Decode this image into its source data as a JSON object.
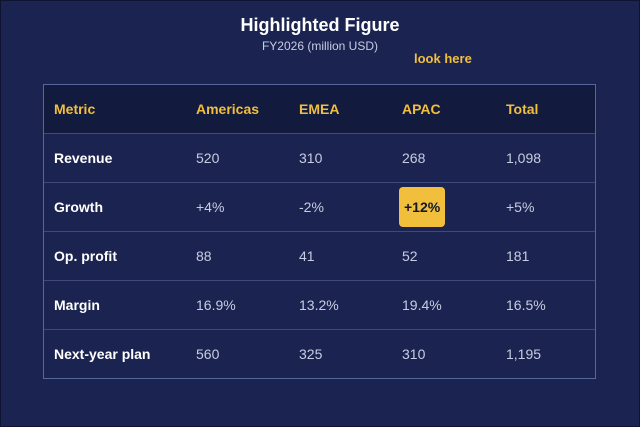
{
  "chart_data": {
    "type": "table",
    "title": "Highlighted Figure",
    "subtitle": "FY2026 (million USD)",
    "annotation": "look here",
    "columns": [
      "Metric",
      "Americas",
      "EMEA",
      "APAC",
      "Total"
    ],
    "rows": [
      [
        "Revenue",
        "520",
        "310",
        "268",
        "1,098"
      ],
      [
        "Growth",
        "+4%",
        "-2%",
        "+12%",
        "+5%"
      ],
      [
        "Op. profit",
        "88",
        "41",
        "52",
        "181"
      ],
      [
        "Margin",
        "16.9%",
        "13.2%",
        "19.4%",
        "16.5%"
      ],
      [
        "Next-year plan",
        "560",
        "325",
        "310",
        "1,195"
      ]
    ],
    "highlighted_cell": {
      "row": "Growth",
      "column": "APAC",
      "value": "+12%"
    }
  },
  "colors": {
    "background": "#1b2450",
    "header_background": "#121a3e",
    "accent": "#f2bf3c",
    "text": "#c7cde2",
    "border": "#56679c"
  }
}
